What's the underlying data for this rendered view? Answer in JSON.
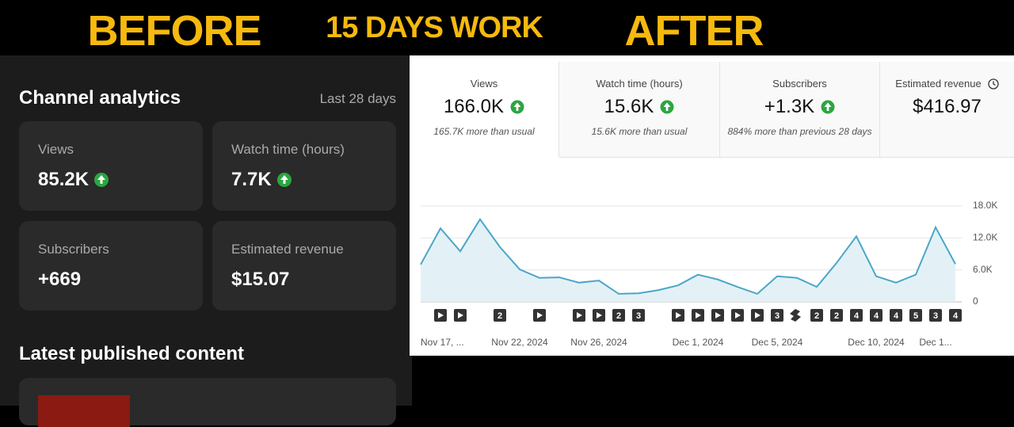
{
  "header": {
    "before": "BEFORE",
    "middle": "15 DAYS WORK",
    "after": "AFTER"
  },
  "before_panel": {
    "title": "Channel analytics",
    "period": "Last 28 days",
    "cards": [
      {
        "label": "Views",
        "value": "85.2K"
      },
      {
        "label": "Watch time (hours)",
        "value": "7.7K"
      },
      {
        "label": "Subscribers",
        "value": "+669"
      },
      {
        "label": "Estimated revenue",
        "value": "$15.07"
      }
    ],
    "section_title": "Latest published content"
  },
  "after_panel": {
    "metrics": [
      {
        "label": "Views",
        "value": "166.0K",
        "note": "165.7K more than usual"
      },
      {
        "label": "Watch time (hours)",
        "value": "15.6K",
        "note": "15.6K more than usual"
      },
      {
        "label": "Subscribers",
        "value": "+1.3K",
        "note": "884% more than previous 28 days"
      },
      {
        "label": "Estimated revenue",
        "value": "$416.97"
      }
    ]
  },
  "chart_data": {
    "type": "line",
    "categories": [
      "Nov 17, ...",
      null,
      null,
      null,
      null,
      "Nov 22, 2024",
      null,
      null,
      null,
      "Nov 26, 2024",
      null,
      null,
      null,
      null,
      "Dec 1, 2024",
      null,
      null,
      null,
      "Dec 5, 2024",
      null,
      null,
      null,
      null,
      "Dec 10, 2024",
      null,
      null,
      "Dec 1...",
      null
    ],
    "values": [
      7000,
      13800,
      9500,
      15500,
      10300,
      6100,
      4500,
      4600,
      3600,
      4000,
      1500,
      1600,
      2200,
      3100,
      5100,
      4200,
      2800,
      1500,
      4800,
      4500,
      2800,
      7300,
      12300,
      4800,
      3600,
      5100,
      14000,
      7100
    ],
    "marker_counts": [
      null,
      null,
      null,
      null,
      2,
      null,
      null,
      null,
      null,
      null,
      2,
      3,
      null,
      null,
      null,
      null,
      null,
      null,
      3,
      null,
      2,
      2,
      4,
      4,
      4,
      5,
      3,
      4
    ],
    "color": "#4ba6c8",
    "ylim": [
      0,
      18000
    ],
    "yticks": [
      0,
      {
        "value": 6000,
        "label": "6.0K"
      },
      {
        "value": 12000,
        "label": "12.0K"
      },
      {
        "value": 18000,
        "label": "18.0K"
      }
    ],
    "grid": true
  }
}
